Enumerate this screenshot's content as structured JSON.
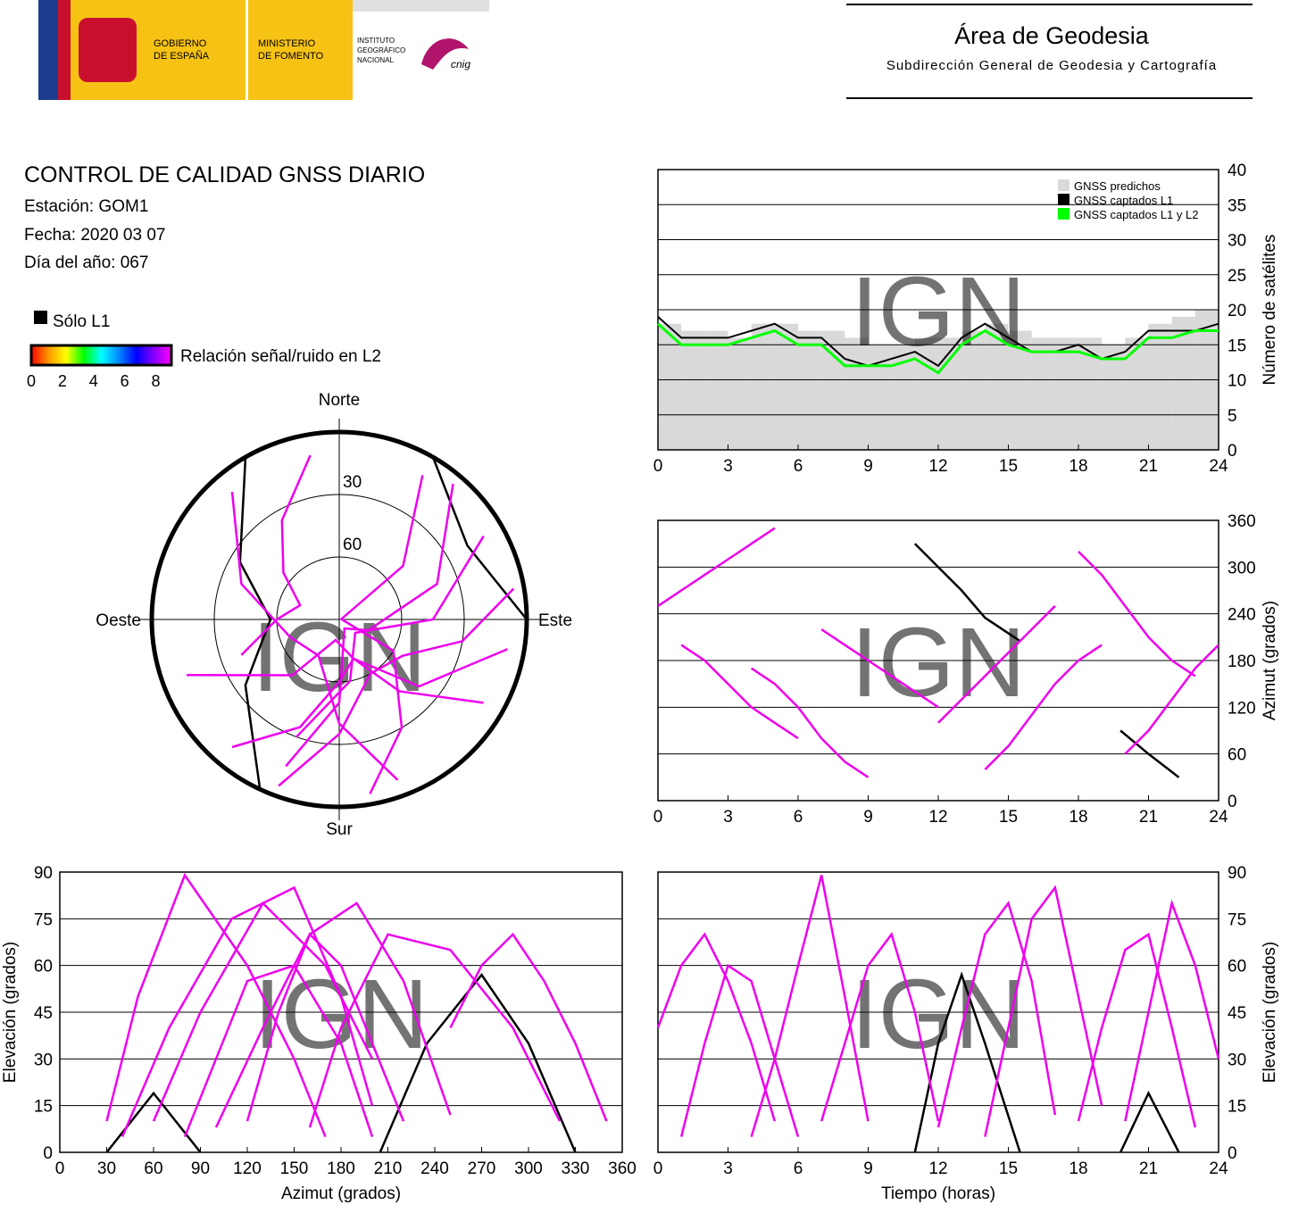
{
  "header": {
    "gobierno": [
      "GOBIERNO",
      "DE ESPAÑA"
    ],
    "ministerio": [
      "MINISTERIO",
      "DE FOMENTO"
    ],
    "instituto": [
      "INSTITUTO",
      "GEOGRÁFICO",
      "NACIONAL"
    ],
    "cnig": "cnig",
    "area": "Área de Geodesia",
    "subdireccion": "Subdirección General de Geodesia y Cartografía"
  },
  "info": {
    "title": "CONTROL DE CALIDAD GNSS DIARIO",
    "station": "Estación: GOM1",
    "date": "Fecha: 2020 03 07",
    "doy": "Día del año: 067"
  },
  "legend": {
    "l1_only": "Sólo L1",
    "l1_only_color": "#000000",
    "colorbar_label": "Relación señal/ruido en L2",
    "colorbar_ticks": [
      0,
      2,
      4,
      6,
      8
    ],
    "colorbar_lim": [
      0,
      9
    ],
    "colorbar_colors": [
      "#ff0000",
      "#ff9900",
      "#ffff00",
      "#00ff00",
      "#00ffff",
      "#0088ff",
      "#0000ff",
      "#8800ff",
      "#ff00ff"
    ]
  },
  "watermark": "IGN",
  "chart_data": [
    {
      "type": "step",
      "y_label": "Número de satélites",
      "x": [
        0,
        1,
        2,
        3,
        4,
        5,
        6,
        7,
        8,
        9,
        10,
        11,
        12,
        13,
        14,
        15,
        16,
        17,
        18,
        19,
        20,
        21,
        22,
        23,
        24
      ],
      "xlim": [
        0,
        24
      ],
      "xticks": [
        0,
        3,
        6,
        9,
        12,
        15,
        18,
        21,
        24
      ],
      "ylim": [
        0,
        40
      ],
      "yticks": [
        0,
        5,
        10,
        15,
        20,
        25,
        30,
        35,
        40
      ],
      "grid": true,
      "legend": "upper right",
      "series": [
        {
          "name": "GNSS predichos",
          "color": "#d9d9d9",
          "kind": "area",
          "values": [
            18,
            17,
            17,
            16,
            18,
            18,
            17,
            17,
            16,
            15,
            15,
            16,
            16,
            17,
            18,
            17,
            16,
            16,
            16,
            15,
            16,
            18,
            19,
            20,
            19
          ]
        },
        {
          "name": "GNSS captados L1",
          "color": "#000000",
          "kind": "line",
          "values": [
            19,
            16,
            16,
            16,
            17,
            18,
            16,
            16,
            13,
            12,
            13,
            14,
            12,
            16,
            18,
            16,
            14,
            14,
            15,
            13,
            14,
            17,
            17,
            17,
            18
          ]
        },
        {
          "name": "GNSS captados L1 y L2",
          "color": "#00ff00",
          "kind": "line",
          "values": [
            18,
            15,
            15,
            15,
            16,
            17,
            15,
            15,
            12,
            12,
            12,
            13,
            11,
            15,
            17,
            15,
            14,
            14,
            14,
            13,
            13,
            16,
            16,
            17,
            17
          ]
        }
      ]
    },
    {
      "type": "polar",
      "labels": {
        "north": "Norte",
        "east": "Este",
        "south": "Sur",
        "west": "Oeste"
      },
      "rlim": [
        90,
        0
      ],
      "rticks": [
        30,
        60
      ],
      "series": [
        {
          "color": "#000000",
          "x": [
            330,
            300,
            270,
            235,
            205
          ],
          "values": [
            0,
            35,
            57,
            35,
            0
          ]
        },
        {
          "color": "#000000",
          "x": [
            90,
            60,
            30
          ],
          "values": [
            0,
            19,
            0
          ]
        },
        {
          "color": "#ee00ee",
          "x": [
            250,
            270,
            290,
            310,
            330,
            350
          ],
          "values": [
            40,
            60,
            70,
            55,
            35,
            10
          ]
        },
        {
          "color": "#ee00ee",
          "x": [
            170,
            150,
            120,
            80,
            50,
            30
          ],
          "values": [
            5,
            30,
            60,
            89,
            50,
            10
          ]
        },
        {
          "color": "#ee00ee",
          "x": [
            220,
            200,
            180,
            160,
            140,
            120
          ],
          "values": [
            10,
            35,
            60,
            70,
            45,
            10
          ]
        },
        {
          "color": "#ee00ee",
          "x": [
            40,
            70,
            110,
            150,
            180,
            200
          ],
          "values": [
            5,
            40,
            75,
            85,
            50,
            15
          ]
        },
        {
          "color": "#ee00ee",
          "x": [
            320,
            290,
            250,
            210,
            180,
            160
          ],
          "values": [
            10,
            40,
            65,
            70,
            40,
            8
          ]
        },
        {
          "color": "#ee00ee",
          "x": [
            200,
            180,
            150,
            120,
            100,
            80
          ],
          "values": [
            5,
            35,
            60,
            55,
            30,
            5
          ]
        },
        {
          "color": "#ee00ee",
          "x": [
            100,
            130,
            160,
            190,
            220,
            250
          ],
          "values": [
            8,
            40,
            70,
            80,
            55,
            12
          ]
        },
        {
          "color": "#ee00ee",
          "x": [
            60,
            90,
            130,
            170,
            200
          ],
          "values": [
            10,
            45,
            80,
            60,
            30
          ]
        }
      ]
    },
    {
      "type": "line",
      "y_label": "Azimut (grados)",
      "xlim": [
        0,
        24
      ],
      "xticks": [
        0,
        3,
        6,
        9,
        12,
        15,
        18,
        21,
        24
      ],
      "ylim": [
        0,
        360
      ],
      "yticks": [
        0,
        60,
        120,
        180,
        240,
        300,
        360
      ],
      "grid": true,
      "series": [
        {
          "color": "#000000",
          "x": [
            11,
            12,
            13,
            14,
            15.5
          ],
          "values": [
            330,
            300,
            270,
            235,
            205
          ]
        },
        {
          "color": "#000000",
          "x": [
            19.8,
            21,
            22.3
          ],
          "values": [
            90,
            60,
            30
          ]
        },
        {
          "color": "#ee00ee",
          "x": [
            0,
            1,
            2,
            3,
            4,
            5
          ],
          "values": [
            250,
            270,
            290,
            310,
            330,
            350
          ]
        },
        {
          "color": "#ee00ee",
          "x": [
            4,
            5,
            6,
            7,
            8,
            9
          ],
          "values": [
            170,
            150,
            120,
            80,
            50,
            30
          ]
        },
        {
          "color": "#ee00ee",
          "x": [
            7,
            8,
            9,
            10,
            11,
            12
          ],
          "values": [
            220,
            200,
            180,
            160,
            140,
            120
          ]
        },
        {
          "color": "#ee00ee",
          "x": [
            14,
            15,
            16,
            17,
            18,
            19
          ],
          "values": [
            40,
            70,
            110,
            150,
            180,
            200
          ]
        },
        {
          "color": "#ee00ee",
          "x": [
            18,
            19,
            20,
            21,
            22,
            23
          ],
          "values": [
            320,
            290,
            250,
            210,
            180,
            160
          ]
        },
        {
          "color": "#ee00ee",
          "x": [
            1,
            2,
            3,
            4,
            5,
            6
          ],
          "values": [
            200,
            180,
            150,
            120,
            100,
            80
          ]
        },
        {
          "color": "#ee00ee",
          "x": [
            12,
            13,
            14,
            15,
            16,
            17
          ],
          "values": [
            100,
            130,
            160,
            190,
            220,
            250
          ]
        },
        {
          "color": "#ee00ee",
          "x": [
            20,
            21,
            22,
            23,
            24
          ],
          "values": [
            60,
            90,
            130,
            170,
            200
          ]
        }
      ]
    },
    {
      "type": "line",
      "x_label": "Azimut (grados)",
      "y_label": "Elevación (grados)",
      "xlim": [
        0,
        360
      ],
      "xticks": [
        0,
        30,
        60,
        90,
        120,
        150,
        180,
        210,
        240,
        270,
        300,
        330,
        360
      ],
      "ylim": [
        0,
        90
      ],
      "yticks": [
        0,
        15,
        30,
        45,
        60,
        75,
        90
      ],
      "grid": true,
      "series": [
        {
          "color": "#000000",
          "x": [
            205,
            235,
            270,
            300,
            330
          ],
          "values": [
            0,
            35,
            57,
            35,
            0
          ]
        },
        {
          "color": "#000000",
          "x": [
            30,
            60,
            90
          ],
          "values": [
            0,
            19,
            0
          ]
        },
        {
          "color": "#ee00ee",
          "x": [
            250,
            270,
            290,
            310,
            330,
            350
          ],
          "values": [
            40,
            60,
            70,
            55,
            35,
            10
          ]
        },
        {
          "color": "#ee00ee",
          "x": [
            30,
            50,
            80,
            120,
            150,
            170
          ],
          "values": [
            10,
            50,
            89,
            60,
            30,
            5
          ]
        },
        {
          "color": "#ee00ee",
          "x": [
            120,
            140,
            160,
            180,
            200,
            220
          ],
          "values": [
            10,
            45,
            70,
            60,
            35,
            10
          ]
        },
        {
          "color": "#ee00ee",
          "x": [
            40,
            70,
            110,
            150,
            180,
            200
          ],
          "values": [
            5,
            40,
            75,
            85,
            50,
            15
          ]
        },
        {
          "color": "#ee00ee",
          "x": [
            160,
            180,
            210,
            250,
            290,
            320
          ],
          "values": [
            8,
            40,
            70,
            65,
            40,
            10
          ]
        },
        {
          "color": "#ee00ee",
          "x": [
            80,
            100,
            120,
            150,
            180,
            200
          ],
          "values": [
            5,
            30,
            55,
            60,
            35,
            5
          ]
        },
        {
          "color": "#ee00ee",
          "x": [
            100,
            130,
            160,
            190,
            220,
            250
          ],
          "values": [
            8,
            40,
            70,
            80,
            55,
            12
          ]
        },
        {
          "color": "#ee00ee",
          "x": [
            60,
            90,
            130,
            170,
            200
          ],
          "values": [
            10,
            45,
            80,
            60,
            30
          ]
        }
      ]
    },
    {
      "type": "line",
      "x_label": "Tiempo (horas)",
      "y_label": "Elevación (grados)",
      "xlim": [
        0,
        24
      ],
      "xticks": [
        0,
        3,
        6,
        9,
        12,
        15,
        18,
        21,
        24
      ],
      "ylim": [
        0,
        90
      ],
      "yticks": [
        0,
        15,
        30,
        45,
        60,
        75,
        90
      ],
      "grid": true,
      "series": [
        {
          "color": "#000000",
          "x": [
            11,
            12,
            13,
            14,
            15.5
          ],
          "values": [
            0,
            35,
            57,
            35,
            0
          ]
        },
        {
          "color": "#000000",
          "x": [
            19.8,
            21,
            22.3
          ],
          "values": [
            0,
            19,
            0
          ]
        },
        {
          "color": "#ee00ee",
          "x": [
            0,
            1,
            2,
            3,
            4,
            5
          ],
          "values": [
            40,
            60,
            70,
            55,
            35,
            10
          ]
        },
        {
          "color": "#ee00ee",
          "x": [
            4,
            5,
            6,
            7,
            8,
            9
          ],
          "values": [
            5,
            30,
            60,
            89,
            50,
            10
          ]
        },
        {
          "color": "#ee00ee",
          "x": [
            7,
            8,
            9,
            10,
            11,
            12
          ],
          "values": [
            10,
            35,
            60,
            70,
            45,
            10
          ]
        },
        {
          "color": "#ee00ee",
          "x": [
            14,
            15,
            16,
            17,
            18,
            19
          ],
          "values": [
            5,
            40,
            75,
            85,
            50,
            15
          ]
        },
        {
          "color": "#ee00ee",
          "x": [
            18,
            19,
            20,
            21,
            22,
            23
          ],
          "values": [
            10,
            40,
            65,
            70,
            40,
            8
          ]
        },
        {
          "color": "#ee00ee",
          "x": [
            1,
            2,
            3,
            4,
            5,
            6
          ],
          "values": [
            5,
            35,
            60,
            55,
            30,
            5
          ]
        },
        {
          "color": "#ee00ee",
          "x": [
            12,
            13,
            14,
            15,
            16,
            17
          ],
          "values": [
            8,
            40,
            70,
            80,
            55,
            12
          ]
        },
        {
          "color": "#ee00ee",
          "x": [
            20,
            21,
            22,
            23,
            24
          ],
          "values": [
            10,
            45,
            80,
            60,
            30
          ]
        }
      ]
    }
  ]
}
